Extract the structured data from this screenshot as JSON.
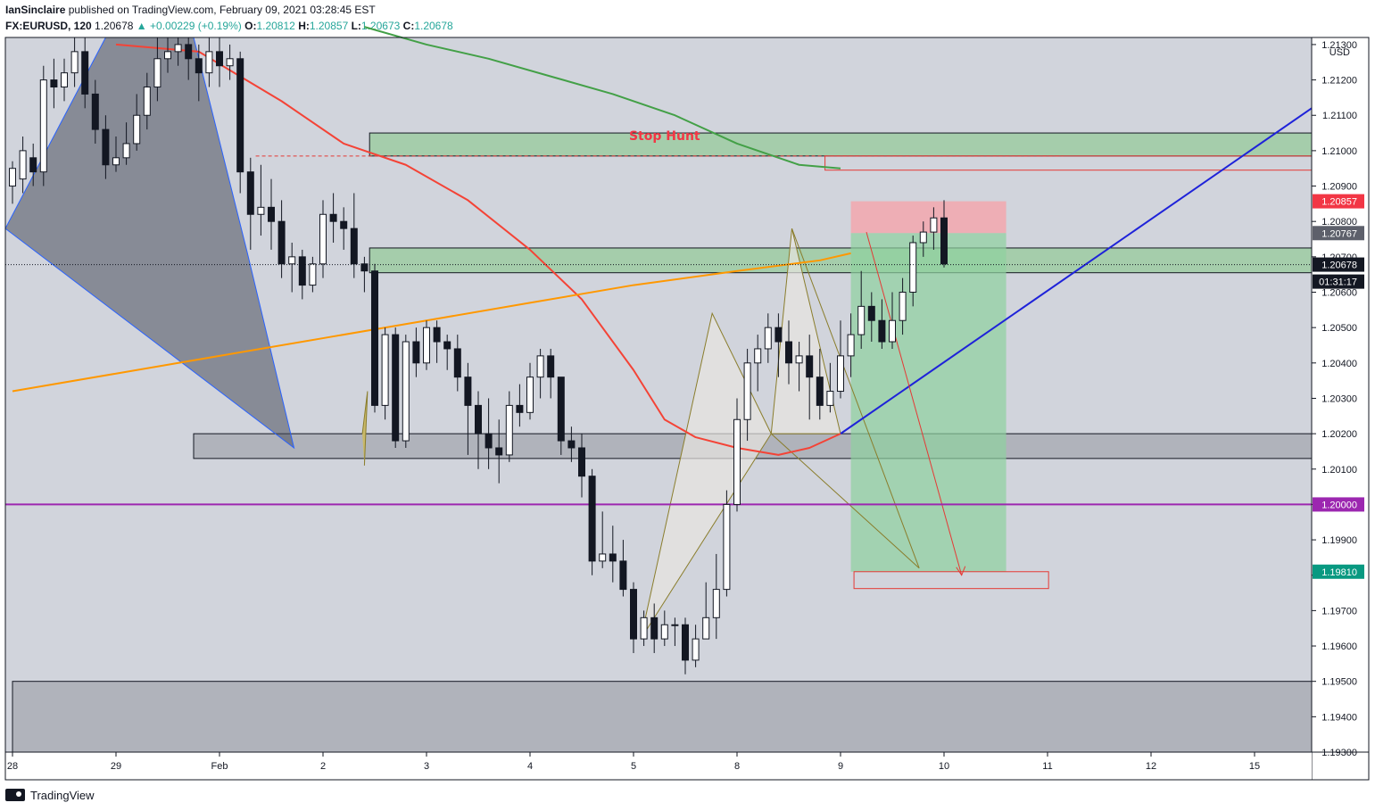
{
  "header": {
    "publisher": "IanSinclaire",
    "published_text": "published on TradingView.com, February 09, 2021 03:28:45 EST",
    "symbol": "FX:EURUSD, 120",
    "last": "1.20678",
    "change_text": "+0.00229 (+0.19%)",
    "open_label": "O:",
    "open": "1.20812",
    "high_label": "H:",
    "high": "1.20857",
    "low_label": "L:",
    "low": "1.20673",
    "close_label": "C:",
    "close": "1.20678"
  },
  "footer": {
    "brand": "TradingView"
  },
  "chart_data": {
    "type": "candlestick",
    "symbol": "FX:EURUSD",
    "interval": "120",
    "currency": "USD",
    "ylim": [
      1.193,
      1.2132
    ],
    "y_ticks": [
      "1.21300",
      "1.21200",
      "1.21100",
      "1.21000",
      "1.20900",
      "1.20800",
      "1.20700",
      "1.20600",
      "1.20500",
      "1.20400",
      "1.20300",
      "1.20200",
      "1.20100",
      "1.20000",
      "1.19900",
      "1.19800",
      "1.19700",
      "1.19600",
      "1.19500",
      "1.19400",
      "1.19300"
    ],
    "y_tick_values": [
      1.213,
      1.212,
      1.211,
      1.21,
      1.209,
      1.208,
      1.207,
      1.206,
      1.205,
      1.204,
      1.203,
      1.202,
      1.201,
      1.2,
      1.199,
      1.198,
      1.197,
      1.196,
      1.195,
      1.194,
      1.193
    ],
    "x_ticks": [
      {
        "label": "28",
        "bar": 0
      },
      {
        "label": "29",
        "bar": 10
      },
      {
        "label": "Feb",
        "bar": 20
      },
      {
        "label": "2",
        "bar": 30
      },
      {
        "label": "3",
        "bar": 40
      },
      {
        "label": "4",
        "bar": 50
      },
      {
        "label": "5",
        "bar": 60
      },
      {
        "label": "8",
        "bar": 70
      },
      {
        "label": "9",
        "bar": 80
      },
      {
        "label": "10",
        "bar": 90
      },
      {
        "label": "11",
        "bar": 100
      },
      {
        "label": "12",
        "bar": 110
      },
      {
        "label": "15",
        "bar": 120
      }
    ],
    "price_badges": [
      {
        "text": "1.20857",
        "value": 1.20857,
        "color": "#f23645"
      },
      {
        "text": "1.20767",
        "value": 1.20767,
        "color": "#5d606b"
      },
      {
        "text": "1.20678",
        "value": 1.20678,
        "color": "#131722"
      },
      {
        "text": "01:31:17",
        "value": 1.2063,
        "color": "#131722"
      },
      {
        "text": "1.20000",
        "value": 1.2,
        "color": "#9c27b0"
      },
      {
        "text": "1.19810",
        "value": 1.1981,
        "color": "#089981"
      }
    ],
    "annotations": [
      {
        "text": "Stop Hunt",
        "color": "#f23645"
      }
    ],
    "candles": [
      [
        1.209,
        1.2095,
        1.2085,
        1.2097
      ],
      [
        1.2092,
        1.21,
        1.2088,
        1.2104
      ],
      [
        1.2098,
        1.2094,
        1.209,
        1.2102
      ],
      [
        1.2094,
        1.212,
        1.209,
        1.2124
      ],
      [
        1.212,
        1.2118,
        1.2112,
        1.2126
      ],
      [
        1.2118,
        1.2122,
        1.2114,
        1.2126
      ],
      [
        1.2122,
        1.2128,
        1.2118,
        1.2132
      ],
      [
        1.2128,
        1.2116,
        1.2112,
        1.2132
      ],
      [
        1.2116,
        1.2106,
        1.2102,
        1.212
      ],
      [
        1.2106,
        1.2096,
        1.2092,
        1.211
      ],
      [
        1.2096,
        1.2098,
        1.2094,
        1.2104
      ],
      [
        1.2098,
        1.2102,
        1.2096,
        1.2108
      ],
      [
        1.2102,
        1.211,
        1.21,
        1.2116
      ],
      [
        1.211,
        1.2118,
        1.2106,
        1.2122
      ],
      [
        1.2118,
        1.2126,
        1.2114,
        1.2132
      ],
      [
        1.2126,
        1.2128,
        1.2122,
        1.2132
      ],
      [
        1.2128,
        1.213,
        1.2124,
        1.2132
      ],
      [
        1.213,
        1.2126,
        1.212,
        1.2132
      ],
      [
        1.2126,
        1.2122,
        1.2114,
        1.213
      ],
      [
        1.2122,
        1.2128,
        1.2118,
        1.2132
      ],
      [
        1.2128,
        1.2124,
        1.2118,
        1.2132
      ],
      [
        1.2124,
        1.2126,
        1.212,
        1.213
      ],
      [
        1.2126,
        1.2094,
        1.2088,
        1.2128
      ],
      [
        1.2094,
        1.2082,
        1.2072,
        1.2098
      ],
      [
        1.2082,
        1.2084,
        1.2076,
        1.2096
      ],
      [
        1.2084,
        1.208,
        1.2072,
        1.2092
      ],
      [
        1.208,
        1.2068,
        1.2064,
        1.2086
      ],
      [
        1.2068,
        1.207,
        1.206,
        1.2074
      ],
      [
        1.207,
        1.2062,
        1.2058,
        1.2072
      ],
      [
        1.2062,
        1.2068,
        1.206,
        1.207
      ],
      [
        1.2068,
        1.2082,
        1.2064,
        1.2086
      ],
      [
        1.2082,
        1.208,
        1.2074,
        1.2088
      ],
      [
        1.208,
        1.2078,
        1.2072,
        1.2084
      ],
      [
        1.2078,
        1.2068,
        1.2064,
        1.2088
      ],
      [
        1.2068,
        1.2066,
        1.206,
        1.207
      ],
      [
        1.2066,
        1.2028,
        1.2026,
        1.2068
      ],
      [
        1.2028,
        1.2048,
        1.2024,
        1.205
      ],
      [
        1.2048,
        1.2018,
        1.2016,
        1.205
      ],
      [
        1.2018,
        1.2046,
        1.2016,
        1.2048
      ],
      [
        1.2046,
        1.204,
        1.2036,
        1.205
      ],
      [
        1.204,
        1.205,
        1.2038,
        1.2052
      ],
      [
        1.205,
        1.2046,
        1.204,
        1.2052
      ],
      [
        1.2046,
        1.2044,
        1.2038,
        1.2048
      ],
      [
        1.2044,
        1.2036,
        1.2032,
        1.2048
      ],
      [
        1.2036,
        1.2028,
        1.2014,
        1.204
      ],
      [
        1.2028,
        1.202,
        1.201,
        1.2032
      ],
      [
        1.202,
        1.2016,
        1.201,
        1.203
      ],
      [
        1.2016,
        1.2014,
        1.2006,
        1.2024
      ],
      [
        1.2014,
        1.2028,
        1.2012,
        1.2032
      ],
      [
        1.2028,
        1.2026,
        1.2022,
        1.2034
      ],
      [
        1.2026,
        1.2036,
        1.2024,
        1.204
      ],
      [
        1.2036,
        1.2042,
        1.203,
        1.2044
      ],
      [
        1.2042,
        1.2036,
        1.203,
        1.2044
      ],
      [
        1.2036,
        1.2018,
        1.2014,
        1.2036
      ],
      [
        1.2018,
        1.2016,
        1.2012,
        1.2022
      ],
      [
        1.2016,
        1.2008,
        1.2002,
        1.202
      ],
      [
        1.2008,
        1.1984,
        1.198,
        1.201
      ],
      [
        1.1984,
        1.1986,
        1.1982,
        1.1998
      ],
      [
        1.1986,
        1.1984,
        1.1978,
        1.1994
      ],
      [
        1.1984,
        1.1976,
        1.1974,
        1.199
      ],
      [
        1.1976,
        1.1962,
        1.1958,
        1.1978
      ],
      [
        1.1962,
        1.1968,
        1.196,
        1.197
      ],
      [
        1.1968,
        1.1962,
        1.1958,
        1.1972
      ],
      [
        1.1962,
        1.1966,
        1.196,
        1.197
      ],
      [
        1.1966,
        1.1966,
        1.196,
        1.1968
      ],
      [
        1.1966,
        1.1956,
        1.1952,
        1.1968
      ],
      [
        1.1956,
        1.1962,
        1.1954,
        1.1966
      ],
      [
        1.1962,
        1.1968,
        1.1962,
        1.1978
      ],
      [
        1.1968,
        1.1976,
        1.1962,
        1.1986
      ],
      [
        1.1976,
        1.2,
        1.1974,
        1.2004
      ],
      [
        1.2,
        1.2024,
        1.1998,
        1.203
      ],
      [
        1.2024,
        1.204,
        1.2018,
        1.2044
      ],
      [
        1.204,
        1.2044,
        1.2032,
        1.2048
      ],
      [
        1.2044,
        1.205,
        1.204,
        1.2054
      ],
      [
        1.205,
        1.2046,
        1.2036,
        1.2054
      ],
      [
        1.2046,
        1.204,
        1.2034,
        1.2052
      ],
      [
        1.204,
        1.2042,
        1.2032,
        1.2046
      ],
      [
        1.2042,
        1.2036,
        1.2024,
        1.2048
      ],
      [
        1.2036,
        1.2028,
        1.2024,
        1.2044
      ],
      [
        1.2028,
        1.2032,
        1.2026,
        1.204
      ],
      [
        1.2032,
        1.2042,
        1.203,
        1.2052
      ],
      [
        1.2042,
        1.2048,
        1.2036,
        1.2054
      ],
      [
        1.2048,
        1.2056,
        1.2044,
        1.2066
      ],
      [
        1.2056,
        1.2052,
        1.2046,
        1.206
      ],
      [
        1.2052,
        1.2046,
        1.2044,
        1.2058
      ],
      [
        1.2046,
        1.2052,
        1.2044,
        1.206
      ],
      [
        1.2052,
        1.206,
        1.2048,
        1.2064
      ],
      [
        1.206,
        1.2074,
        1.2056,
        1.2076
      ],
      [
        1.2074,
        1.2077,
        1.207,
        1.208
      ],
      [
        1.2077,
        1.2081,
        1.2072,
        1.2084
      ],
      [
        1.2081,
        1.2068,
        1.2067,
        1.2086
      ]
    ],
    "moving_averages": [
      {
        "color": "#43a047",
        "points": [
          [
            34,
            1.2135
          ],
          [
            40,
            1.213
          ],
          [
            46,
            1.2126
          ],
          [
            52,
            1.2121
          ],
          [
            58,
            1.2116
          ],
          [
            64,
            1.211
          ],
          [
            70,
            1.2102
          ],
          [
            76,
            1.2096
          ],
          [
            80,
            1.2095
          ]
        ]
      },
      {
        "color": "#f44336",
        "points": [
          [
            10,
            1.213
          ],
          [
            18,
            1.2128
          ],
          [
            26,
            1.2114
          ],
          [
            32,
            1.2102
          ],
          [
            38,
            1.2096
          ],
          [
            44,
            1.2086
          ],
          [
            50,
            1.2072
          ],
          [
            55,
            1.2058
          ],
          [
            60,
            1.2038
          ],
          [
            63,
            1.2024
          ],
          [
            66,
            1.2019
          ],
          [
            70,
            1.2016
          ],
          [
            74,
            1.2014
          ],
          [
            77,
            1.2016
          ],
          [
            80,
            1.202
          ]
        ]
      },
      {
        "color": "#ff9800",
        "points": [
          [
            0,
            1.2032
          ],
          [
            10,
            1.2037
          ],
          [
            20,
            1.2042
          ],
          [
            30,
            1.2047
          ],
          [
            40,
            1.2052
          ],
          [
            50,
            1.2057
          ],
          [
            60,
            1.2062
          ],
          [
            70,
            1.2066
          ],
          [
            78,
            1.2069
          ],
          [
            81,
            1.2071
          ]
        ]
      }
    ],
    "zones": [
      {
        "color": "#81c784",
        "from_bar": 34.5,
        "to_bar": 127,
        "top": 1.2105,
        "bottom": 1.20985
      },
      {
        "color": "#81c784",
        "from_bar": 34.5,
        "to_bar": 127,
        "top": 1.20725,
        "bottom": 1.20655
      },
      {
        "color": "#9598a1",
        "from_bar": 17.5,
        "to_bar": 127,
        "top": 1.202,
        "bottom": 1.2013
      },
      {
        "color": "#9598a1",
        "from_bar": 0,
        "to_bar": 127,
        "top": 1.195,
        "bottom": 1.193
      }
    ],
    "position": {
      "entry": 1.20767,
      "stop": 1.20857,
      "target": 1.1981,
      "from_bar": 81,
      "to_bar": 96
    }
  }
}
